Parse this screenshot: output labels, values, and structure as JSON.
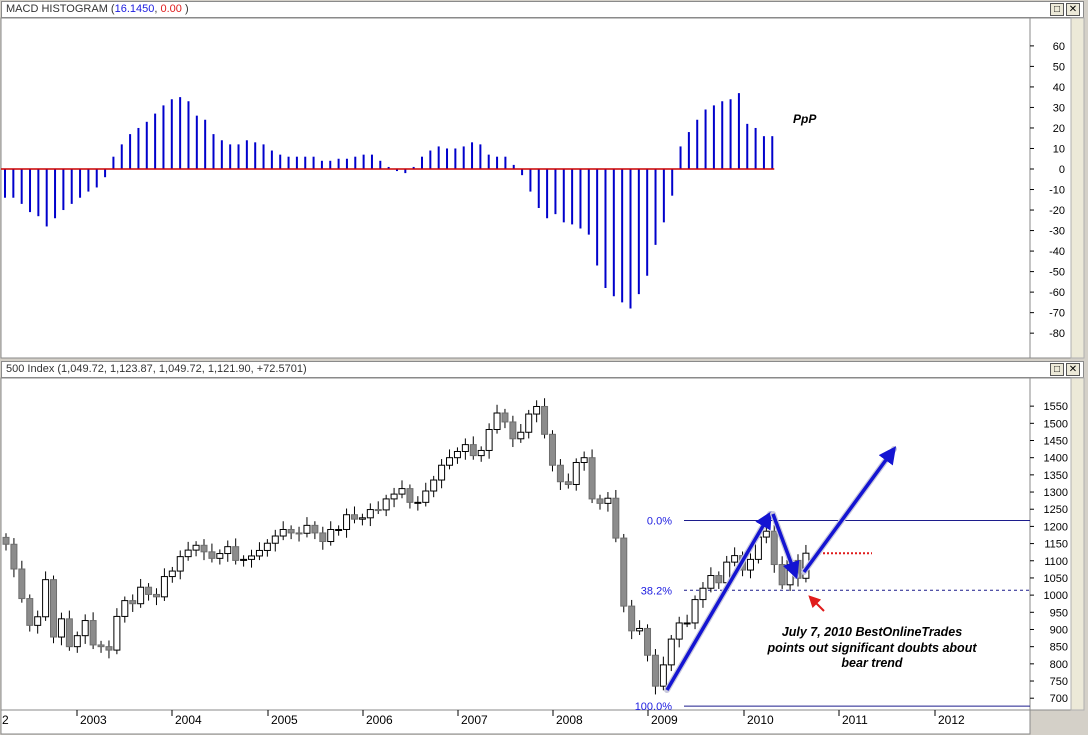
{
  "macd_pane": {
    "title_prefix": "MACD HISTOGRAM (",
    "value1": "16.1450",
    "sep": ", ",
    "value2": "0.00",
    "suffix": " )",
    "annotation": "PpP"
  },
  "price_pane": {
    "title": "500 Index (1,049.72, 1,123.87, 1,049.72, 1,121.90, +72.5701)",
    "fib_labels": [
      "0.0%",
      "38.2%",
      "100.0%"
    ],
    "annotation_lines": [
      "July 7, 2010 BestOnlineTrades",
      "points out significant doubts about",
      "bear trend"
    ]
  },
  "window_buttons": {
    "restore": "□",
    "close": "✕"
  },
  "chart_data": [
    {
      "type": "bar",
      "title": "MACD HISTOGRAM (16.1450, 0.00 )",
      "ylim": [
        -85,
        65
      ],
      "yticks": [
        -80,
        -70,
        -60,
        -50,
        -40,
        -30,
        -20,
        -10,
        0,
        10,
        20,
        30,
        40,
        50,
        60
      ],
      "values": [
        -14,
        -14,
        -17,
        -21,
        -23,
        -28,
        -24,
        -20,
        -17,
        -14,
        -11,
        -9,
        -4,
        6,
        12,
        17,
        20,
        23,
        27,
        31,
        34,
        35,
        33,
        26,
        24,
        17,
        14,
        12,
        12,
        14,
        13,
        12,
        9,
        7,
        6,
        6,
        6,
        6,
        4,
        4,
        5,
        5,
        6,
        7,
        7,
        4,
        1,
        -1,
        -2,
        1,
        6,
        9,
        11,
        10,
        10,
        11,
        13,
        12,
        7,
        6,
        6,
        2,
        -3,
        -11,
        -19,
        -24,
        -22,
        -26,
        -27,
        -29,
        -32,
        -47,
        -58,
        -62,
        -65,
        -68,
        -61,
        -52,
        -37,
        -26,
        -13,
        11,
        18,
        24,
        29,
        31,
        33,
        34,
        37,
        22,
        20,
        16,
        16
      ],
      "color": "#0000cc",
      "zero_line_color": "#cc0000"
    },
    {
      "type": "candlestick",
      "title": "500 Index (1,049.72, 1,123.87, 1,049.72, 1,121.90, +72.5701)",
      "x_labels": [
        "2003",
        "2004",
        "2005",
        "2006",
        "2007",
        "2008",
        "2009",
        "2010",
        "2011",
        "2012"
      ],
      "x_start_partial_label": "2",
      "ylim": [
        660,
        1590
      ],
      "yticks": [
        700,
        750,
        800,
        850,
        900,
        950,
        1000,
        1050,
        1100,
        1150,
        1200,
        1250,
        1300,
        1350,
        1400,
        1450,
        1500,
        1550
      ],
      "close": [
        1148,
        1076,
        990,
        912,
        937,
        1045,
        878,
        931,
        850,
        882,
        926,
        855,
        850,
        840,
        938,
        984,
        975,
        1023,
        1002,
        995,
        1054,
        1070,
        1112,
        1131,
        1145,
        1126,
        1107,
        1121,
        1141,
        1101,
        1104,
        1114,
        1130,
        1151,
        1172,
        1191,
        1181,
        1180,
        1203,
        1181,
        1156,
        1191,
        1191,
        1234,
        1221,
        1225,
        1249,
        1248,
        1280,
        1294,
        1310,
        1270,
        1270,
        1303,
        1335,
        1378,
        1400,
        1418,
        1438,
        1406,
        1421,
        1482,
        1530,
        1504,
        1455,
        1474,
        1527,
        1549,
        1468,
        1378,
        1330,
        1322,
        1386,
        1400,
        1280,
        1267,
        1282,
        1166,
        968,
        896,
        903,
        825,
        735,
        797,
        872,
        919,
        919,
        987,
        1020,
        1057,
        1036,
        1096,
        1115,
        1073,
        1104,
        1169,
        1186,
        1089,
        1030,
        1101,
        1049,
        1122
      ],
      "fib_levels": [
        {
          "label": "0.0%",
          "value": 1217
        },
        {
          "label": "38.2%",
          "value": 1014
        },
        {
          "label": "100.0%",
          "value": 677
        }
      ],
      "resistance_value": 1122
    }
  ]
}
